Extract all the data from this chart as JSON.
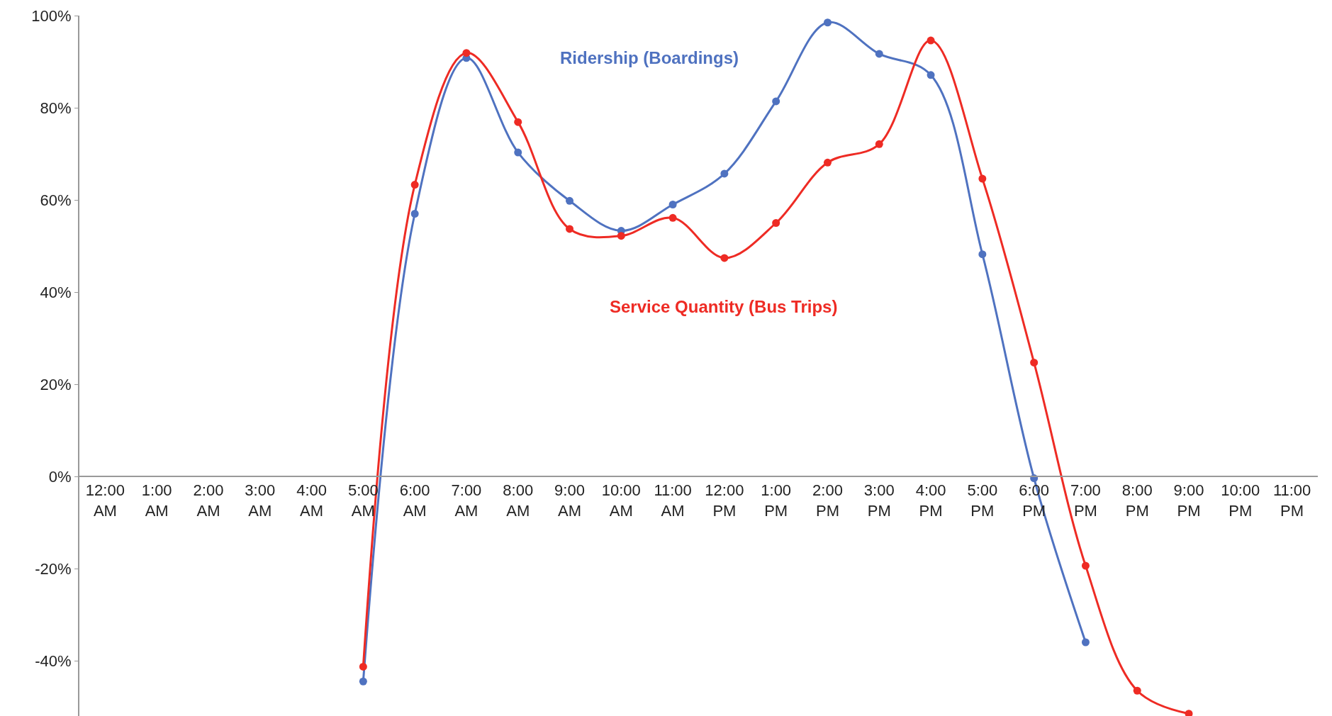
{
  "chart_data": {
    "type": "line",
    "categories": [
      "12:00 AM",
      "1:00 AM",
      "2:00 AM",
      "3:00 AM",
      "4:00 AM",
      "5:00 AM",
      "6:00 AM",
      "7:00 AM",
      "8:00 AM",
      "9:00 AM",
      "10:00 AM",
      "11:00 AM",
      "12:00 PM",
      "1:00 PM",
      "2:00 PM",
      "3:00 PM",
      "4:00 PM",
      "5:00 PM",
      "6:00 PM",
      "7:00 PM",
      "8:00 PM",
      "9:00 PM",
      "10:00 PM",
      "11:00 PM"
    ],
    "series": [
      {
        "name": "Ridership (Boardings)",
        "color": "#4f72c0",
        "values": [
          null,
          null,
          null,
          null,
          null,
          -44.5,
          57,
          90.8,
          70.3,
          59.8,
          53.3,
          59,
          65.7,
          81.4,
          98.5,
          91.7,
          87.1,
          48.2,
          -0.4,
          -36,
          null,
          null,
          null,
          null
        ]
      },
      {
        "name": "Service Quantity (Bus Trips)",
        "color": "#ee2b24",
        "values": [
          null,
          null,
          null,
          null,
          null,
          -41.3,
          63.3,
          91.9,
          76.9,
          53.7,
          52.2,
          56.1,
          47.4,
          55,
          68.1,
          72.1,
          94.6,
          64.6,
          24.7,
          -19.4,
          -46.5,
          -51.5,
          null,
          null
        ]
      }
    ],
    "ylim": [
      -52,
      100
    ],
    "yticks": [
      {
        "value": -40,
        "label": "-40%"
      },
      {
        "value": -20,
        "label": "-20%"
      },
      {
        "value": 0,
        "label": "0%"
      },
      {
        "value": 20,
        "label": "20%"
      },
      {
        "value": 40,
        "label": "40%"
      },
      {
        "value": 60,
        "label": "60%"
      },
      {
        "value": 80,
        "label": "80%"
      },
      {
        "value": 100,
        "label": "100%"
      }
    ],
    "legend": false,
    "marker": "circle",
    "line_style": "solid"
  }
}
